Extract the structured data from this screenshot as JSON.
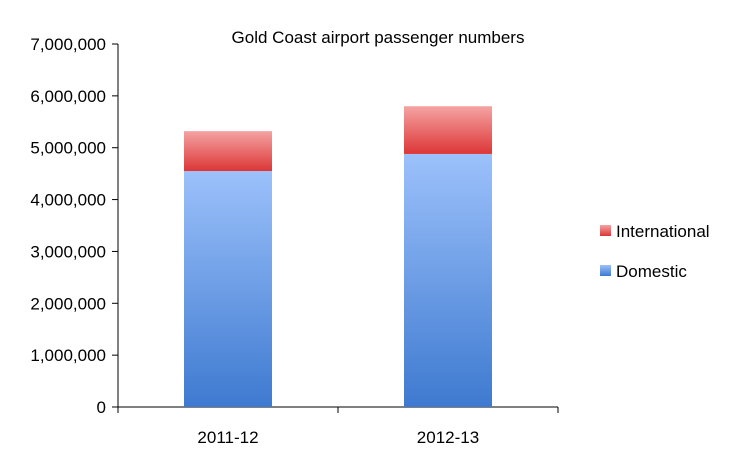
{
  "chart_data": {
    "type": "bar",
    "stacked": true,
    "title": "Gold Coast airport passenger numbers",
    "xlabel": "",
    "ylabel": "",
    "categories": [
      "2011-12",
      "2012-13"
    ],
    "series": [
      {
        "name": "Domestic",
        "values": [
          4550000,
          4880000
        ],
        "color": "#4f86d4"
      },
      {
        "name": "International",
        "values": [
          770000,
          920000
        ],
        "color": "#e34a4a"
      }
    ],
    "ylim": [
      0,
      7000000
    ],
    "yticks": [
      0,
      1000000,
      2000000,
      3000000,
      4000000,
      5000000,
      6000000,
      7000000
    ],
    "ytick_labels": [
      "0",
      "1,000,000",
      "2,000,000",
      "3,000,000",
      "4,000,000",
      "5,000,000",
      "6,000,000",
      "7,000,000"
    ],
    "grid": false,
    "legend_position": "right",
    "legend_order": [
      "International",
      "Domestic"
    ]
  }
}
